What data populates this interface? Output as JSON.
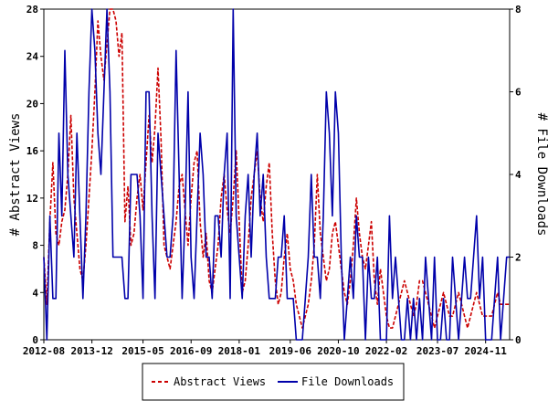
{
  "chart_data": {
    "type": "line",
    "x_tick_labels": [
      "2012-08",
      "2013-12",
      "2015-05",
      "2016-09",
      "2018-01",
      "2019-06",
      "2020-10",
      "2022-02",
      "2023-07",
      "2024-11"
    ],
    "x_range": [
      0,
      155
    ],
    "x_tick_positions": [
      0,
      16,
      33,
      49,
      65,
      82,
      98,
      114,
      131,
      147
    ],
    "y_left": {
      "label": "# Abstract Views",
      "ticks": [
        0,
        4,
        8,
        12,
        16,
        20,
        24,
        28
      ],
      "range": [
        0,
        28
      ]
    },
    "y_right": {
      "label": "# File Downloads",
      "ticks": [
        0,
        2,
        4,
        6,
        8
      ],
      "range": [
        0,
        8
      ]
    },
    "legend": {
      "position": "bottom-center"
    },
    "series": [
      {
        "name": "Abstract Views",
        "axis": "left",
        "color": "#cc0000",
        "style": "dashed",
        "values": [
          7,
          3,
          10,
          15,
          9,
          8,
          10,
          11,
          14,
          19,
          12,
          9,
          6,
          5,
          8,
          12,
          16,
          21,
          27,
          24,
          22,
          25,
          28,
          28,
          27,
          24,
          26,
          10,
          13,
          8,
          9,
          12,
          14,
          11,
          15,
          19,
          15,
          18,
          23,
          17,
          8,
          7,
          6,
          8,
          10,
          13,
          14,
          11,
          8,
          12,
          15,
          16,
          10,
          7,
          9,
          5,
          4,
          6,
          8,
          12,
          14,
          11,
          9,
          12,
          16,
          10,
          4,
          5,
          8,
          12,
          14,
          16,
          12,
          10,
          13,
          15,
          9,
          5,
          3,
          4,
          7,
          9,
          6,
          5,
          3,
          2,
          1,
          2,
          3,
          5,
          8,
          14,
          9,
          7,
          5,
          6,
          9,
          10,
          8,
          6,
          4,
          3,
          5,
          8,
          12,
          9,
          7,
          6,
          8,
          10,
          5,
          3,
          6,
          4,
          2,
          1,
          1,
          2,
          3,
          4,
          5,
          4,
          3,
          2,
          3,
          5,
          5,
          4,
          3,
          2,
          1,
          2,
          3,
          4,
          3,
          2,
          2,
          3,
          4,
          3,
          2,
          1,
          2,
          3,
          4,
          3,
          2,
          2,
          2,
          2,
          3,
          4,
          3,
          3,
          3,
          3
        ]
      },
      {
        "name": "File Downloads",
        "axis": "right",
        "color": "#0000aa",
        "style": "solid",
        "values": [
          2,
          0,
          3,
          1,
          1,
          5,
          3,
          7,
          4,
          3,
          2,
          5,
          3,
          1,
          3,
          6,
          8,
          7,
          5,
          4,
          6,
          8,
          6,
          2,
          2,
          2,
          2,
          1,
          1,
          4,
          4,
          4,
          3,
          1,
          6,
          6,
          3,
          1,
          5,
          4,
          3,
          2,
          2,
          3,
          7,
          4,
          1,
          3,
          6,
          2,
          1,
          3,
          5,
          4,
          2,
          2,
          1,
          3,
          3,
          2,
          4,
          5,
          1,
          8,
          3,
          2,
          1,
          3,
          4,
          2,
          4,
          5,
          3,
          4,
          2,
          1,
          1,
          1,
          2,
          2,
          3,
          1,
          1,
          1,
          0,
          0,
          0,
          1,
          2,
          4,
          2,
          2,
          1,
          3,
          6,
          5,
          3,
          6,
          5,
          2,
          0,
          1,
          2,
          1,
          3,
          2,
          2,
          0,
          2,
          1,
          1,
          2,
          0,
          0,
          0,
          3,
          1,
          2,
          1,
          0,
          0,
          1,
          0,
          1,
          0,
          1,
          0,
          2,
          1,
          0,
          2,
          0,
          0,
          1,
          0,
          0,
          2,
          1,
          0,
          1,
          2,
          1,
          1,
          2,
          3,
          1,
          2,
          0,
          0,
          0,
          1,
          2,
          0,
          1,
          2,
          2
        ]
      }
    ]
  }
}
